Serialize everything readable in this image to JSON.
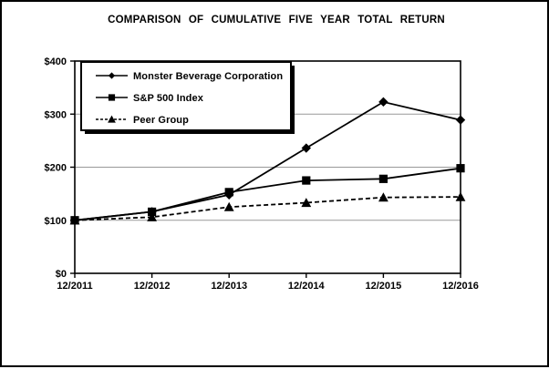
{
  "title": "COMPARISON OF CUMULATIVE FIVE YEAR TOTAL RETURN",
  "chart_data": {
    "type": "line",
    "title": "COMPARISON OF CUMULATIVE FIVE YEAR TOTAL RETURN",
    "categories": [
      "12/2011",
      "12/2012",
      "12/2013",
      "12/2014",
      "12/2015",
      "12/2016"
    ],
    "series": [
      {
        "name": "Monster Beverage Corporation",
        "marker": "diamond",
        "line": "solid",
        "values": [
          100,
          116,
          148,
          236,
          323,
          289
        ]
      },
      {
        "name": "S&P 500 Index",
        "marker": "square",
        "line": "solid",
        "values": [
          100,
          116,
          153,
          175,
          178,
          198
        ]
      },
      {
        "name": "Peer Group",
        "marker": "triangle",
        "line": "dashed",
        "values": [
          100,
          106,
          125,
          133,
          143,
          144
        ]
      }
    ],
    "xlabel": "",
    "ylabel": "",
    "y_ticks": [
      "$0",
      "$100",
      "$200",
      "$300",
      "$400"
    ],
    "y_tick_values": [
      0,
      100,
      200,
      300,
      400
    ],
    "ylim": [
      0,
      400
    ],
    "grid": "horizontal",
    "legend_position": "top-left",
    "colors": {
      "series": "#000000",
      "grid": "#999999",
      "axis": "#000000",
      "background": "#ffffff",
      "legend_shadow": "#000000"
    }
  }
}
